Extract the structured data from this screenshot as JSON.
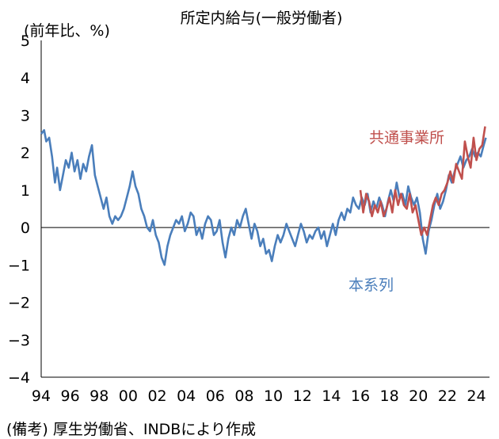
{
  "chart_data": {
    "type": "line",
    "title": "所定内給与(一般労働者)",
    "ylabel": "(前年比、%)",
    "ylim": [
      -4,
      5
    ],
    "yticks": [
      "5",
      "4",
      "3",
      "2",
      "1",
      "0",
      "−1",
      "−2",
      "−3",
      "−4"
    ],
    "xlim": [
      1994.0,
      2024.9
    ],
    "xticks": [
      "94",
      "96",
      "98",
      "00",
      "02",
      "04",
      "06",
      "08",
      "10",
      "12",
      "14",
      "16",
      "18",
      "20",
      "22",
      "24"
    ],
    "grid": false,
    "zero_line": true,
    "series": [
      {
        "name": "本系列",
        "color": "#4a7ebb",
        "points": [
          [
            1994.0,
            2.5
          ],
          [
            1994.2,
            2.6
          ],
          [
            1994.35,
            2.3
          ],
          [
            1994.55,
            2.4
          ],
          [
            1994.75,
            1.9
          ],
          [
            1994.95,
            1.2
          ],
          [
            1995.1,
            1.6
          ],
          [
            1995.3,
            1.0
          ],
          [
            1995.5,
            1.4
          ],
          [
            1995.7,
            1.8
          ],
          [
            1995.9,
            1.6
          ],
          [
            1996.1,
            2.0
          ],
          [
            1996.3,
            1.5
          ],
          [
            1996.5,
            1.8
          ],
          [
            1996.7,
            1.3
          ],
          [
            1996.9,
            1.7
          ],
          [
            1997.1,
            1.5
          ],
          [
            1997.3,
            1.9
          ],
          [
            1997.5,
            2.2
          ],
          [
            1997.7,
            1.4
          ],
          [
            1997.9,
            1.1
          ],
          [
            1998.1,
            0.8
          ],
          [
            1998.3,
            0.5
          ],
          [
            1998.5,
            0.8
          ],
          [
            1998.7,
            0.3
          ],
          [
            1998.9,
            0.1
          ],
          [
            1999.1,
            0.3
          ],
          [
            1999.3,
            0.2
          ],
          [
            1999.5,
            0.3
          ],
          [
            1999.7,
            0.5
          ],
          [
            1999.9,
            0.8
          ],
          [
            2000.1,
            1.1
          ],
          [
            2000.3,
            1.5
          ],
          [
            2000.5,
            1.1
          ],
          [
            2000.7,
            0.9
          ],
          [
            2000.9,
            0.5
          ],
          [
            2001.1,
            0.3
          ],
          [
            2001.3,
            0.0
          ],
          [
            2001.5,
            -0.1
          ],
          [
            2001.7,
            0.2
          ],
          [
            2001.9,
            -0.2
          ],
          [
            2002.1,
            -0.4
          ],
          [
            2002.3,
            -0.8
          ],
          [
            2002.5,
            -1.0
          ],
          [
            2002.7,
            -0.5
          ],
          [
            2002.9,
            -0.2
          ],
          [
            2003.1,
            0.0
          ],
          [
            2003.3,
            0.2
          ],
          [
            2003.5,
            0.1
          ],
          [
            2003.7,
            0.3
          ],
          [
            2003.9,
            -0.1
          ],
          [
            2004.1,
            0.1
          ],
          [
            2004.3,
            0.4
          ],
          [
            2004.5,
            0.3
          ],
          [
            2004.7,
            -0.2
          ],
          [
            2004.9,
            0.0
          ],
          [
            2005.1,
            -0.3
          ],
          [
            2005.3,
            0.1
          ],
          [
            2005.5,
            0.3
          ],
          [
            2005.7,
            0.2
          ],
          [
            2005.9,
            -0.2
          ],
          [
            2006.1,
            -0.1
          ],
          [
            2006.3,
            0.2
          ],
          [
            2006.5,
            -0.4
          ],
          [
            2006.7,
            -0.8
          ],
          [
            2006.9,
            -0.3
          ],
          [
            2007.1,
            0.0
          ],
          [
            2007.3,
            -0.2
          ],
          [
            2007.5,
            0.2
          ],
          [
            2007.7,
            0.0
          ],
          [
            2007.9,
            0.3
          ],
          [
            2008.1,
            0.5
          ],
          [
            2008.3,
            0.1
          ],
          [
            2008.5,
            -0.3
          ],
          [
            2008.7,
            0.1
          ],
          [
            2008.9,
            -0.1
          ],
          [
            2009.1,
            -0.5
          ],
          [
            2009.3,
            -0.3
          ],
          [
            2009.5,
            -0.7
          ],
          [
            2009.7,
            -0.6
          ],
          [
            2009.9,
            -0.9
          ],
          [
            2010.1,
            -0.5
          ],
          [
            2010.3,
            -0.2
          ],
          [
            2010.5,
            -0.4
          ],
          [
            2010.7,
            -0.2
          ],
          [
            2010.9,
            0.1
          ],
          [
            2011.1,
            -0.1
          ],
          [
            2011.3,
            -0.3
          ],
          [
            2011.5,
            -0.5
          ],
          [
            2011.7,
            -0.2
          ],
          [
            2011.9,
            0.1
          ],
          [
            2012.1,
            -0.1
          ],
          [
            2012.3,
            -0.4
          ],
          [
            2012.5,
            -0.2
          ],
          [
            2012.7,
            -0.3
          ],
          [
            2012.9,
            -0.1
          ],
          [
            2013.1,
            0.0
          ],
          [
            2013.3,
            -0.3
          ],
          [
            2013.5,
            -0.1
          ],
          [
            2013.7,
            -0.5
          ],
          [
            2013.9,
            -0.2
          ],
          [
            2014.1,
            0.1
          ],
          [
            2014.3,
            -0.2
          ],
          [
            2014.5,
            0.2
          ],
          [
            2014.7,
            0.4
          ],
          [
            2014.9,
            0.2
          ],
          [
            2015.1,
            0.5
          ],
          [
            2015.3,
            0.4
          ],
          [
            2015.5,
            0.8
          ],
          [
            2015.7,
            0.6
          ],
          [
            2015.9,
            0.5
          ],
          [
            2016.1,
            0.8
          ],
          [
            2016.3,
            0.6
          ],
          [
            2016.5,
            0.9
          ],
          [
            2016.7,
            0.4
          ],
          [
            2016.9,
            0.7
          ],
          [
            2017.1,
            0.5
          ],
          [
            2017.3,
            0.8
          ],
          [
            2017.5,
            0.6
          ],
          [
            2017.7,
            0.3
          ],
          [
            2017.9,
            0.7
          ],
          [
            2018.1,
            1.0
          ],
          [
            2018.3,
            0.7
          ],
          [
            2018.5,
            1.2
          ],
          [
            2018.7,
            0.8
          ],
          [
            2018.9,
            0.9
          ],
          [
            2019.1,
            0.6
          ],
          [
            2019.3,
            1.1
          ],
          [
            2019.5,
            0.8
          ],
          [
            2019.7,
            0.6
          ],
          [
            2019.9,
            0.8
          ],
          [
            2020.1,
            0.4
          ],
          [
            2020.3,
            -0.3
          ],
          [
            2020.5,
            -0.7
          ],
          [
            2020.7,
            -0.1
          ],
          [
            2020.9,
            0.2
          ],
          [
            2021.1,
            0.6
          ],
          [
            2021.3,
            0.9
          ],
          [
            2021.5,
            0.5
          ],
          [
            2021.7,
            0.7
          ],
          [
            2021.9,
            1.0
          ],
          [
            2022.1,
            1.4
          ],
          [
            2022.3,
            1.2
          ],
          [
            2022.5,
            1.5
          ],
          [
            2022.7,
            1.7
          ],
          [
            2022.9,
            1.9
          ],
          [
            2023.1,
            1.6
          ],
          [
            2023.3,
            1.8
          ],
          [
            2023.5,
            1.9
          ],
          [
            2023.7,
            2.1
          ],
          [
            2023.9,
            1.9
          ],
          [
            2024.1,
            2.0
          ],
          [
            2024.3,
            1.9
          ],
          [
            2024.5,
            2.2
          ],
          [
            2024.65,
            2.4
          ]
        ]
      },
      {
        "name": "共通事業所",
        "color": "#c0504d",
        "points": [
          [
            2016.0,
            1.0
          ],
          [
            2016.2,
            0.4
          ],
          [
            2016.4,
            0.9
          ],
          [
            2016.6,
            0.7
          ],
          [
            2016.8,
            0.3
          ],
          [
            2017.0,
            0.6
          ],
          [
            2017.2,
            0.4
          ],
          [
            2017.4,
            0.7
          ],
          [
            2017.6,
            0.3
          ],
          [
            2017.8,
            0.5
          ],
          [
            2018.0,
            0.8
          ],
          [
            2018.2,
            0.4
          ],
          [
            2018.4,
            1.0
          ],
          [
            2018.6,
            0.6
          ],
          [
            2018.8,
            0.9
          ],
          [
            2019.0,
            0.6
          ],
          [
            2019.2,
            0.5
          ],
          [
            2019.4,
            0.9
          ],
          [
            2019.6,
            0.4
          ],
          [
            2019.8,
            0.6
          ],
          [
            2020.0,
            0.2
          ],
          [
            2020.2,
            -0.2
          ],
          [
            2020.4,
            0.0
          ],
          [
            2020.6,
            -0.2
          ],
          [
            2020.8,
            0.2
          ],
          [
            2021.0,
            0.6
          ],
          [
            2021.2,
            0.8
          ],
          [
            2021.4,
            0.6
          ],
          [
            2021.6,
            0.9
          ],
          [
            2021.8,
            1.0
          ],
          [
            2022.0,
            1.2
          ],
          [
            2022.2,
            1.5
          ],
          [
            2022.4,
            1.2
          ],
          [
            2022.6,
            1.7
          ],
          [
            2022.8,
            1.5
          ],
          [
            2023.0,
            1.3
          ],
          [
            2023.2,
            2.3
          ],
          [
            2023.4,
            1.9
          ],
          [
            2023.6,
            1.6
          ],
          [
            2023.8,
            2.4
          ],
          [
            2024.0,
            1.8
          ],
          [
            2024.2,
            2.1
          ],
          [
            2024.4,
            2.2
          ],
          [
            2024.6,
            2.7
          ]
        ]
      }
    ],
    "annotations": [
      {
        "text": "共通事業所",
        "series": 1
      },
      {
        "text": "本系列",
        "series": 0
      }
    ]
  },
  "note": "(備考) 厚生労働省、INDBにより作成"
}
